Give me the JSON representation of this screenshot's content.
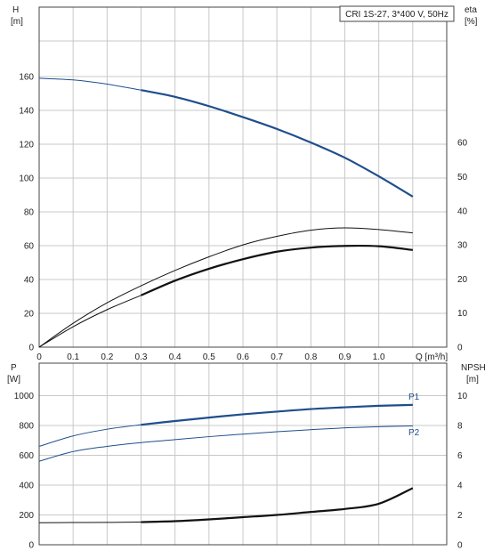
{
  "chart_data": [
    {
      "type": "line",
      "title": "CRI 1S-27, 3*400 V, 50Hz",
      "xlabel": "Q [m³/h]",
      "xlim": [
        0,
        1.2
      ],
      "x_ticks": [
        "0",
        "0.1",
        "0.2",
        "0.3",
        "0.4",
        "0.5",
        "0.6",
        "0.7",
        "0.8",
        "0.9",
        "1.0"
      ],
      "left_axis": {
        "label_line1": "H",
        "label_line2": "[m]",
        "ylim": [
          0,
          180
        ],
        "ticks": [
          "0",
          "20",
          "40",
          "60",
          "80",
          "100",
          "120",
          "140",
          "160"
        ]
      },
      "right_axis": {
        "label_line1": "eta",
        "label_line2": "[%]",
        "ylim": [
          0,
          90
        ],
        "ticks": [
          "0",
          "10",
          "20",
          "30",
          "40",
          "50",
          "60"
        ]
      },
      "grid": true,
      "series": [
        {
          "role": "H",
          "axis": "left",
          "color": "#1f4e8c",
          "thin_until": 0.3,
          "points": [
            [
              0,
              159
            ],
            [
              0.1,
              158
            ],
            [
              0.2,
              155.5
            ],
            [
              0.3,
              152
            ],
            [
              0.4,
              148
            ],
            [
              0.5,
              142.5
            ],
            [
              0.6,
              136
            ],
            [
              0.7,
              129
            ],
            [
              0.8,
              121
            ],
            [
              0.9,
              112
            ],
            [
              1.0,
              101
            ],
            [
              1.1,
              89
            ]
          ]
        },
        {
          "role": "eta_thin",
          "axis": "right",
          "color": "#111111",
          "style": "thin",
          "points": [
            [
              0,
              0
            ],
            [
              0.1,
              7
            ],
            [
              0.2,
              13
            ],
            [
              0.3,
              18
            ],
            [
              0.4,
              22.5
            ],
            [
              0.5,
              26.5
            ],
            [
              0.6,
              30
            ],
            [
              0.7,
              32.5
            ],
            [
              0.8,
              34.3
            ],
            [
              0.9,
              35
            ],
            [
              1.0,
              34.5
            ],
            [
              1.1,
              33.5
            ]
          ]
        },
        {
          "role": "eta_thick",
          "axis": "right",
          "color": "#111111",
          "style": "thick",
          "thin_until": 0.3,
          "points": [
            [
              0,
              0
            ],
            [
              0.1,
              6
            ],
            [
              0.2,
              11
            ],
            [
              0.3,
              15.2
            ],
            [
              0.4,
              19.5
            ],
            [
              0.5,
              23
            ],
            [
              0.6,
              25.8
            ],
            [
              0.7,
              28
            ],
            [
              0.8,
              29.2
            ],
            [
              0.9,
              29.7
            ],
            [
              1.0,
              29.6
            ],
            [
              1.1,
              28.5
            ]
          ]
        }
      ]
    },
    {
      "type": "line",
      "xlim": [
        0,
        1.2
      ],
      "left_axis": {
        "label_line1": "P",
        "label_line2": "[W]",
        "ylim": [
          0,
          1000
        ],
        "ticks": [
          "0",
          "200",
          "400",
          "600",
          "800",
          "1000"
        ]
      },
      "right_axis": {
        "label_line1": "NPSH",
        "label_line2": "[m]",
        "ylim": [
          0,
          10
        ],
        "ticks": [
          "0",
          "2",
          "4",
          "6",
          "8",
          "10"
        ]
      },
      "grid": true,
      "series": [
        {
          "name": "P1",
          "axis": "left",
          "color": "#1f4e8c",
          "style": "thick",
          "thin_until": 0.3,
          "points": [
            [
              0,
              660
            ],
            [
              0.1,
              730
            ],
            [
              0.2,
              775
            ],
            [
              0.3,
              805
            ],
            [
              0.4,
              830
            ],
            [
              0.5,
              853
            ],
            [
              0.6,
              875
            ],
            [
              0.7,
              893
            ],
            [
              0.8,
              910
            ],
            [
              0.9,
              922
            ],
            [
              1.0,
              932
            ],
            [
              1.1,
              938
            ]
          ]
        },
        {
          "name": "P2",
          "axis": "left",
          "color": "#1f4e8c",
          "style": "thin",
          "points": [
            [
              0,
              560
            ],
            [
              0.1,
              625
            ],
            [
              0.2,
              660
            ],
            [
              0.3,
              685
            ],
            [
              0.4,
              705
            ],
            [
              0.5,
              725
            ],
            [
              0.6,
              742
            ],
            [
              0.7,
              758
            ],
            [
              0.8,
              772
            ],
            [
              0.9,
              784
            ],
            [
              1.0,
              792
            ],
            [
              1.1,
              797
            ]
          ]
        },
        {
          "role": "NPSH",
          "axis": "right",
          "color": "#111111",
          "style": "thick",
          "thin_until": 0.3,
          "points": [
            [
              0,
              1.48
            ],
            [
              0.1,
              1.49
            ],
            [
              0.2,
              1.5
            ],
            [
              0.3,
              1.52
            ],
            [
              0.4,
              1.58
            ],
            [
              0.5,
              1.7
            ],
            [
              0.6,
              1.85
            ],
            [
              0.7,
              2.0
            ],
            [
              0.8,
              2.2
            ],
            [
              0.9,
              2.4
            ],
            [
              1.0,
              2.75
            ],
            [
              1.1,
              3.8
            ]
          ]
        }
      ]
    }
  ]
}
